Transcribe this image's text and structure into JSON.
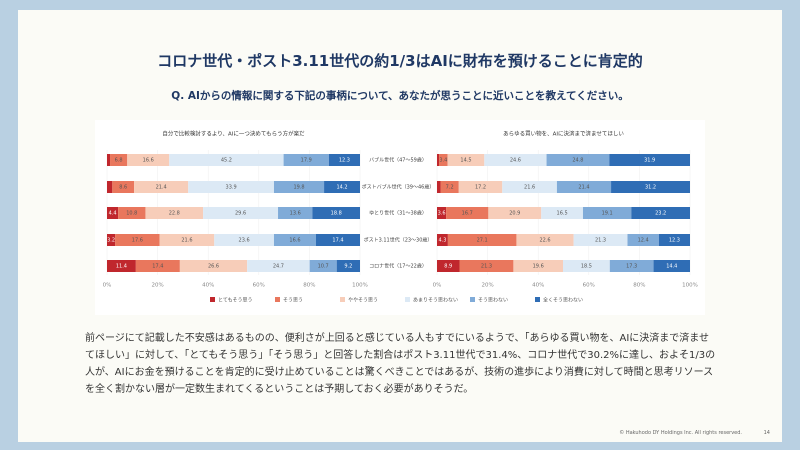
{
  "title": "コロナ世代・ポスト3.11世代の約1/3はAIに財布を預けることに肯定的",
  "subtitle": "Q. AIからの情報に関する下記の事柄について、あなたが思うことに近いことを教えてください。",
  "chart_data": [
    {
      "type": "bar",
      "orientation": "horizontal",
      "stacked": true,
      "title": "自分で比較検討するより、AIに一つ決めてもらう方が楽だ",
      "categories": [
        "バブル世代（47〜59歳）",
        "ポストバブル世代（39〜46歳）",
        "ゆとり世代（31〜38歳）",
        "ポスト3.11世代（23〜30歳）",
        "コロナ世代（17〜22歳）"
      ],
      "series": [
        {
          "name": "とてもそう思う",
          "color": "#c0272d",
          "values": [
            1.2,
            2.1,
            4.4,
            3.2,
            11.4
          ]
        },
        {
          "name": "そう思う",
          "color": "#e9775d",
          "values": [
            6.8,
            8.6,
            10.8,
            17.6,
            17.4
          ]
        },
        {
          "name": "ややそう思う",
          "color": "#f7cdb9",
          "values": [
            16.6,
            21.4,
            22.8,
            21.6,
            26.6
          ]
        },
        {
          "name": "あまりそう思わない",
          "color": "#dce9f5",
          "values": [
            45.2,
            33.9,
            29.6,
            23.6,
            24.7
          ]
        },
        {
          "name": "そう思わない",
          "color": "#80abd8",
          "values": [
            17.9,
            19.8,
            13.6,
            16.6,
            10.7
          ]
        },
        {
          "name": "全くそう思わない",
          "color": "#2f6db5",
          "values": [
            12.3,
            14.2,
            18.8,
            17.4,
            9.2
          ]
        }
      ],
      "xlim": [
        0,
        100
      ],
      "xticks": [
        {
          "value": 0,
          "label": "0%"
        },
        {
          "value": 20,
          "label": "20%"
        },
        {
          "value": 40,
          "label": "40%"
        },
        {
          "value": 60,
          "label": "60%"
        },
        {
          "value": 80,
          "label": "80%"
        },
        {
          "value": 100,
          "label": "100%"
        }
      ]
    },
    {
      "type": "bar",
      "orientation": "horizontal",
      "stacked": true,
      "title": "あらゆる買い物を、AIに決済まで済ませてほしい",
      "series": [
        {
          "color": "#c0272d",
          "values": [
            0.8,
            1.4,
            3.6,
            4.3,
            8.9
          ]
        },
        {
          "color": "#e9775d",
          "values": [
            3.4,
            7.2,
            16.7,
            27.1,
            21.3
          ]
        },
        {
          "color": "#f7cdb9",
          "values": [
            14.5,
            17.2,
            20.9,
            22.6,
            19.6
          ]
        },
        {
          "color": "#dce9f5",
          "values": [
            24.6,
            21.6,
            16.5,
            21.3,
            18.5
          ]
        },
        {
          "color": "#80abd8",
          "values": [
            24.8,
            21.4,
            19.1,
            12.4,
            17.3
          ]
        },
        {
          "color": "#2f6db5",
          "values": [
            31.9,
            31.2,
            23.2,
            12.3,
            14.4
          ]
        }
      ],
      "xlim": [
        0,
        100
      ],
      "xticks": [
        {
          "value": 0,
          "label": "0%"
        },
        {
          "value": 20,
          "label": "20%"
        },
        {
          "value": 40,
          "label": "40%"
        },
        {
          "value": 60,
          "label": "60%"
        },
        {
          "value": 80,
          "label": "80%"
        },
        {
          "value": 100,
          "label": "100%"
        }
      ]
    }
  ],
  "body": "前ページにて記載した不安感はあるものの、便利さが上回ると感じている人もすでにいるようで、「あらゆる買い物を、AIに決済まで済ませてほしい」に対して、「とてもそう思う」「そう思う」と回答した割合はポスト3.11世代で31.4%、コロナ世代で30.2%に達し、およそ1/3の人が、AIにお金を預けることを肯定的に受け止めていることは驚くべきことではあるが、技術の進歩により消費に対して時間と思考リソースを全く割かない層が一定数生まれてくるということは予期しておく必要がありそうだ。",
  "footer": "© Hakuhodo DY Holdings Inc. All rights reserved.",
  "page_number": "14"
}
